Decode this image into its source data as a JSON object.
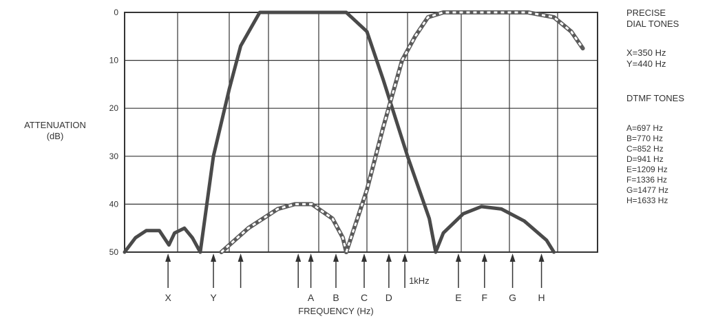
{
  "chart_data": {
    "type": "line",
    "title": "",
    "xlabel": "FREQUENCY (Hz)",
    "ylabel_line1": "ATTENUATION",
    "ylabel_line2": "(dB)",
    "ylim": [
      0,
      50
    ],
    "y_ticks": [
      {
        "value": 0,
        "label": "0"
      },
      {
        "value": 10,
        "label": "10"
      },
      {
        "value": 20,
        "label": "20"
      },
      {
        "value": 30,
        "label": "30"
      },
      {
        "value": 40,
        "label": "40"
      },
      {
        "value": 50,
        "label": "50"
      }
    ],
    "x_range": [
      250,
      2100
    ],
    "grid": true,
    "vertical_grid_frequencies": [
      372,
      470,
      573,
      720,
      860,
      1010,
      1220,
      1460,
      1720
    ],
    "markers": [
      {
        "label": "X",
        "freq": 350
      },
      {
        "label": "Y",
        "freq": 440
      },
      {
        "label": "A",
        "freq": 697
      },
      {
        "label": "B",
        "freq": 770
      },
      {
        "label": "C",
        "freq": 852
      },
      {
        "label": "D",
        "freq": 941
      },
      {
        "label": "E",
        "freq": 1209
      },
      {
        "label": "F",
        "freq": 1336
      },
      {
        "label": "G",
        "freq": 1477
      },
      {
        "label": "H",
        "freq": 1633
      }
    ],
    "extra_arrows": [
      {
        "freq": 500
      },
      {
        "freq": 660
      },
      {
        "freq": 1000
      }
    ],
    "annotation_1khz": {
      "label": "1kHz",
      "freq": 1000
    },
    "series": [
      {
        "style": "solid",
        "points": [
          [
            250,
            50
          ],
          [
            275,
            47
          ],
          [
            300,
            45.5
          ],
          [
            330,
            45.5
          ],
          [
            352,
            48.5
          ],
          [
            365,
            46
          ],
          [
            385,
            45
          ],
          [
            400,
            47
          ],
          [
            415,
            50
          ],
          [
            440,
            30
          ],
          [
            470,
            16
          ],
          [
            500,
            7
          ],
          [
            550,
            0
          ],
          [
            650,
            0
          ],
          [
            740,
            0
          ],
          [
            800,
            0
          ],
          [
            860,
            4
          ],
          [
            920,
            14
          ],
          [
            1010,
            30
          ],
          [
            1095,
            43
          ],
          [
            1120,
            50
          ],
          [
            1150,
            46
          ],
          [
            1230,
            42
          ],
          [
            1320,
            40.5
          ],
          [
            1420,
            41
          ],
          [
            1540,
            43.5
          ],
          [
            1660,
            47.5
          ],
          [
            1700,
            50
          ]
        ]
      },
      {
        "style": "hatched",
        "points": [
          [
            455,
            50
          ],
          [
            520,
            45
          ],
          [
            600,
            41
          ],
          [
            650,
            40
          ],
          [
            700,
            40
          ],
          [
            760,
            43
          ],
          [
            790,
            47
          ],
          [
            800,
            50
          ]
        ]
      },
      {
        "style": "hatched",
        "points": [
          [
            800,
            50
          ],
          [
            860,
            37
          ],
          [
            920,
            24
          ],
          [
            990,
            10
          ],
          [
            1040,
            5
          ],
          [
            1090,
            1
          ],
          [
            1150,
            0
          ],
          [
            1300,
            0
          ],
          [
            1560,
            0
          ],
          [
            1700,
            1
          ],
          [
            1850,
            4
          ],
          [
            1960,
            7.5
          ]
        ]
      }
    ]
  },
  "legend": {
    "dial_title_1": "PRECISE",
    "dial_title_2": "DIAL TONES",
    "x_entry": "X=350 Hz",
    "y_entry": "Y=440 Hz",
    "dtmf_title": "DTMF TONES",
    "dtmf_entries": [
      "A=697 Hz",
      "B=770 Hz",
      "C=852 Hz",
      "D=941 Hz",
      "E=1209 Hz",
      "F=1336 Hz",
      "G=1477 Hz",
      "H=1633 Hz"
    ]
  }
}
